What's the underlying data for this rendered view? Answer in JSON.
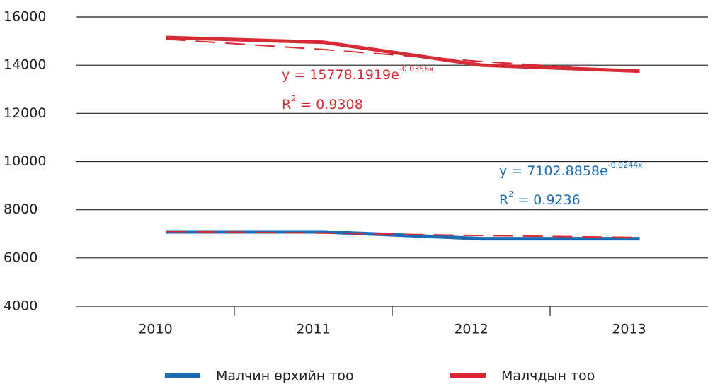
{
  "chart_data": {
    "type": "line",
    "categories": [
      "2010",
      "2011",
      "2012",
      "2013"
    ],
    "series": [
      {
        "name": "Малчин өрхийн тоо",
        "color": "#1b6cb5",
        "values": [
          7080,
          7080,
          6800,
          6800
        ]
      },
      {
        "name": "Малчдын тоо",
        "color": "#d62b35",
        "values": [
          15150,
          14950,
          14000,
          13750
        ]
      }
    ],
    "trendlines": [
      {
        "color": "#d62b35",
        "values": [
          15080,
          14650,
          14150,
          13730
        ]
      },
      {
        "color": "#d62b35",
        "values": [
          7100,
          7030,
          6930,
          6850
        ]
      }
    ],
    "annotations": [
      {
        "text": "y = 15778.1919e",
        "sup": "-0.0356x",
        "color": "#d62b35"
      },
      {
        "text": "R",
        "sup": "2",
        "after": " = 0.9308",
        "color": "#d62b35"
      },
      {
        "text": "y = 7102.8858e",
        "sup": "-0.0244x",
        "color": "#1b6cb5"
      },
      {
        "text": "R",
        "sup": "2",
        "after": " = 0.9236",
        "color": "#1b6cb5"
      }
    ],
    "ylim": [
      4000,
      16000
    ],
    "yticks": [
      4000,
      6000,
      8000,
      10000,
      12000,
      14000,
      16000
    ],
    "grid": true,
    "legend": "bottom"
  }
}
